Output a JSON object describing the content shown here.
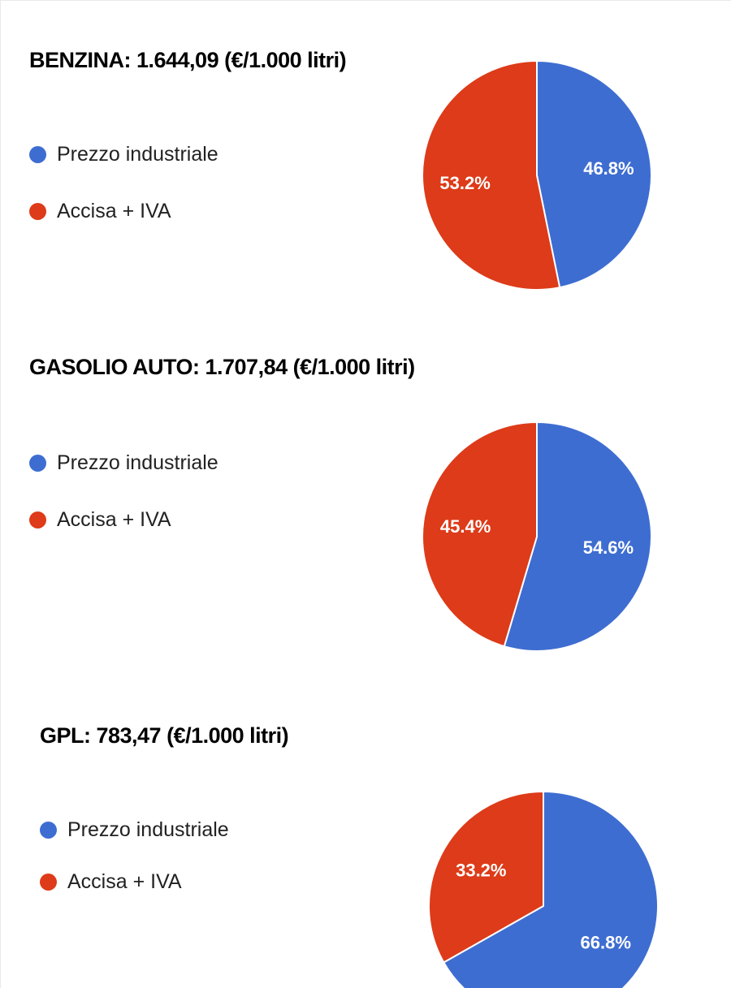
{
  "page": {
    "background": "#ffffff"
  },
  "chart_data": [
    {
      "type": "pie",
      "title": "BENZINA: 1.644,09 (€/1.000 litri)",
      "fuel": "BENZINA",
      "price": "1.644,09",
      "unit": "€/1.000 litri",
      "labels": [
        "Prezzo industriale",
        "Accisa + IVA"
      ],
      "values": [
        46.8,
        53.2
      ],
      "value_labels": [
        "46.8%",
        "53.2%"
      ],
      "colors": [
        "#3e6dd1",
        "#dd3b19"
      ],
      "legend_position": "left",
      "start_angle": "top",
      "direction": "clockwise"
    },
    {
      "type": "pie",
      "title": "GASOLIO AUTO: 1.707,84 (€/1.000 litri)",
      "fuel": "GASOLIO AUTO",
      "price": "1.707,84",
      "unit": "€/1.000 litri",
      "labels": [
        "Prezzo industriale",
        "Accisa + IVA"
      ],
      "values": [
        54.6,
        45.4
      ],
      "value_labels": [
        "54.6%",
        "45.4%"
      ],
      "colors": [
        "#3e6dd1",
        "#dd3b19"
      ],
      "legend_position": "left",
      "start_angle": "top",
      "direction": "clockwise"
    },
    {
      "type": "pie",
      "title": "GPL: 783,47 (€/1.000 litri)",
      "fuel": "GPL",
      "price": "783,47",
      "unit": "€/1.000 litri",
      "labels": [
        "Prezzo industriale",
        "Accisa + IVA"
      ],
      "values": [
        66.8,
        33.2
      ],
      "value_labels": [
        "66.8%",
        "33.2%"
      ],
      "colors": [
        "#3e6dd1",
        "#dd3b19"
      ],
      "legend_position": "left",
      "start_angle": "top",
      "direction": "clockwise"
    }
  ]
}
